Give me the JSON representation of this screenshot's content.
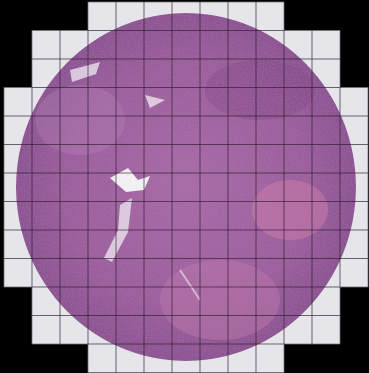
{
  "image": {
    "subject": "tissue-core-patch-grid",
    "grid": {
      "cols": 13,
      "rows": 13
    },
    "colors": {
      "background": "#000000",
      "empty_tile": "#e6e6ea",
      "tissue_base": "#a0649e",
      "tissue_dark": "#6a3a78",
      "tissue_light": "#c98fb8",
      "stroma_pink": "#d37aa8",
      "lumen": "#f2f0f3",
      "grid_line": "#2a1a2a"
    }
  }
}
